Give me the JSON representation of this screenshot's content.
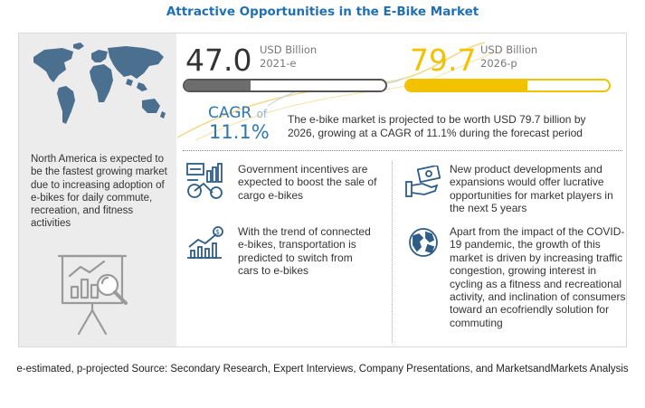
{
  "title": "Attractive Opportunities in the E-Bike Market",
  "market": {
    "value_2021": "47.0",
    "unit_2021": "USD Billion",
    "year_2021": "2021-e",
    "value_2026": "79.7",
    "unit_2026": "USD Billion",
    "year_2026": "2026-p",
    "bar_2021_fill_fraction": 0.33,
    "bar_2026_fill_fraction": 0.6
  },
  "cagr": {
    "label": "CAGR",
    "of": "of",
    "value": "11.1%",
    "description": "The e-bike market is projected to be worth USD 79.7 billion by 2026, growing at a CAGR of 11.1% during the forecast period"
  },
  "left_panel": {
    "text": "North America is expected to be the fastest growing market due to increasing adoption of e-bikes for daily commute, recreation, and fitness activities"
  },
  "insights": [
    {
      "icon": "cargo-bike-chart-icon",
      "text": "Government incentives are expected to boost the sale of cargo e-bikes"
    },
    {
      "icon": "growth-chart-icon",
      "text": "With the trend of connected e-bikes, transportation is predicted to switch from cars to e-bikes"
    },
    {
      "icon": "money-hand-icon",
      "text": "New product developments and expansions would offer lucrative opportunities for market players in the next 5 years"
    },
    {
      "icon": "globe-icon",
      "text": "Apart from the impact of the COVID-19 pandemic, the growth of this market is driven by increasing traffic congestion, growing interest in cycling as a fitness and recreational activity, and inclination of consumers toward an ecofriendly solution for commuting"
    }
  ],
  "footer": "e-estimated, p-projected Source: Secondary Research, Expert Interviews, Company Presentations, and MarketsandMarkets Analysis",
  "colors": {
    "title": "#1f6fb5",
    "accent_blue": "#2e75b6",
    "accent_yellow": "#f2c200",
    "bar_gray": "#6d6d6d"
  }
}
